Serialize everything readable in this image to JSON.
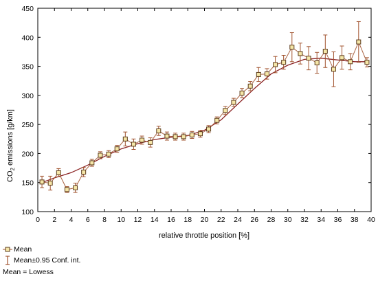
{
  "chart_data": {
    "type": "line",
    "xlabel": "relative throttle position [%]",
    "ylabel_prefix": "CO",
    "ylabel_sub": "2",
    "ylabel_suffix": " emissions [g/km]",
    "xlim": [
      0,
      40
    ],
    "ylim": [
      100,
      450
    ],
    "xticks": [
      0,
      2,
      4,
      6,
      8,
      10,
      12,
      14,
      16,
      18,
      20,
      22,
      24,
      26,
      28,
      30,
      32,
      34,
      36,
      38,
      40
    ],
    "yticks": [
      100,
      150,
      200,
      250,
      300,
      350,
      400,
      450
    ],
    "grid": false,
    "colors": {
      "mean": "#a0522d",
      "lowess": "#8b2323",
      "errorbar": "#a0522d",
      "marker_fill": "#f5e6a8",
      "marker_edge": "#5a3a1a"
    },
    "series": [
      {
        "name": "Mean",
        "x": [
          0.5,
          1.5,
          2.5,
          3.5,
          4.5,
          5.5,
          6.5,
          7.5,
          8.5,
          9.5,
          10.5,
          11.5,
          12.5,
          13.5,
          14.5,
          15.5,
          16.5,
          17.5,
          18.5,
          19.5,
          20.5,
          21.5,
          22.5,
          23.5,
          24.5,
          25.5,
          26.5,
          27.5,
          28.5,
          29.5,
          30.5,
          31.5,
          32.5,
          33.5,
          34.5,
          35.5,
          36.5,
          37.5,
          38.5,
          39.5
        ],
        "y": [
          151,
          149,
          167,
          138,
          141,
          168,
          184,
          197,
          199,
          208,
          225,
          216,
          223,
          219,
          239,
          230,
          229,
          229,
          232,
          234,
          242,
          257,
          274,
          288,
          304,
          316,
          336,
          337,
          353,
          357,
          383,
          372,
          364,
          356,
          376,
          345,
          365,
          358,
          392,
          357
        ],
        "err": [
          10,
          12,
          7,
          5,
          8,
          8,
          6,
          6,
          6,
          6,
          12,
          9,
          7,
          8,
          8,
          7,
          6,
          6,
          6,
          6,
          6,
          6,
          7,
          7,
          8,
          8,
          12,
          9,
          14,
          12,
          25,
          18,
          20,
          18,
          28,
          30,
          20,
          14,
          35,
          8
        ]
      }
    ],
    "lowess": {
      "x": [
        0.5,
        2,
        4,
        6,
        8,
        10,
        12,
        14,
        16,
        18,
        20,
        22,
        24,
        26,
        28,
        30,
        32,
        34,
        36,
        38,
        39.5
      ],
      "y": [
        150,
        158,
        167,
        180,
        195,
        208,
        217,
        224,
        228,
        231,
        240,
        258,
        285,
        312,
        337,
        352,
        362,
        364,
        361,
        358,
        358
      ]
    },
    "legend": {
      "mean_label": "Mean",
      "ci_label": "Mean±0.95 Conf. int.",
      "fit_label": "Mean = Lowess"
    }
  }
}
